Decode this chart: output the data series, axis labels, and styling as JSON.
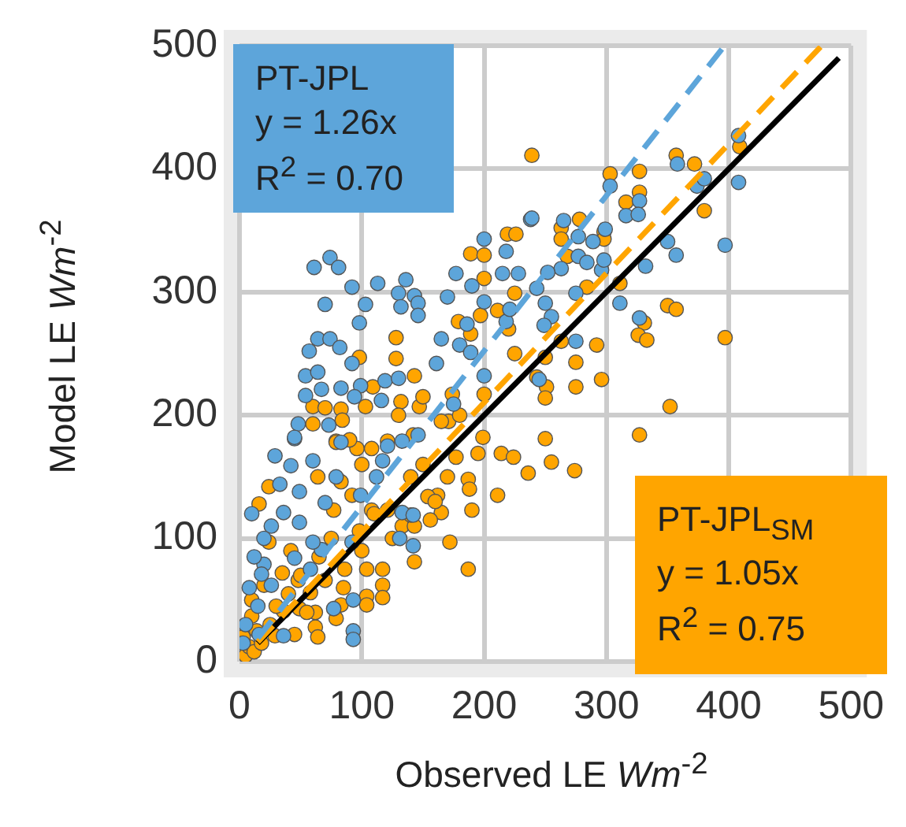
{
  "chart_data": {
    "type": "scatter",
    "xlabel": "Observed LE Wm$^{-2}$",
    "ylabel": "Model LE Wm$^{-2}$",
    "xlim": [
      0,
      500
    ],
    "ylim": [
      0,
      500
    ],
    "xticks": [
      0,
      100,
      200,
      300,
      400,
      500
    ],
    "yticks": [
      0,
      100,
      200,
      300,
      400,
      500
    ],
    "grid": true,
    "legend": false,
    "marker": "circle",
    "annotations": [
      "PT-JPL",
      "y = 1.26x",
      "R$^{2}$ = 0.70",
      "PT-JPL$_{SM}$",
      "y = 1.05x",
      "R$^{2}$ = 0.75"
    ],
    "series": [
      {
        "color": "#5da5da",
        "x": [
          61,
          74,
          81,
          92,
          113,
          136,
          130,
          143,
          146,
          132,
          146,
          70,
          103,
          98,
          64,
          74,
          82,
          57,
          92,
          54,
          64,
          67,
          54,
          83,
          99,
          119,
          130,
          94,
          116,
          48,
          73,
          45,
          165,
          170,
          177,
          190,
          200,
          218,
          238,
          215,
          228,
          218,
          221,
          180,
          189,
          200,
          186,
          200,
          161,
          175,
          358,
          408,
          408,
          374,
          380,
          327,
          316,
          326,
          303,
          265,
          239,
          289,
          277,
          299,
          263,
          252,
          277,
          284,
          296,
          298,
          332,
          350,
          357,
          397,
          243,
          250,
          255,
          275,
          311,
          327,
          275,
          249,
          245,
          45,
          29,
          42,
          60,
          83,
          117,
          121,
          133,
          146,
          33,
          49,
          70,
          49,
          26,
          36,
          133,
          131,
          142,
          142,
          92,
          20,
          26,
          18,
          93,
          93,
          93,
          77,
          58,
          45,
          67,
          112,
          99,
          79,
          60,
          36,
          16,
          5,
          8,
          12,
          3,
          15,
          20,
          10
        ],
        "values": [
          320,
          328,
          320,
          304,
          307,
          310,
          299,
          297,
          291,
          288,
          281,
          290,
          290,
          275,
          262,
          262,
          255,
          252,
          242,
          232,
          235,
          221,
          216,
          222,
          224,
          228,
          230,
          215,
          212,
          193,
          192,
          181,
          262,
          296,
          315,
          305,
          343,
          333,
          359,
          315,
          315,
          276,
          286,
          257,
          251,
          232,
          274,
          292,
          242,
          209,
          404,
          427,
          389,
          386,
          392,
          374,
          362,
          363,
          386,
          358,
          360,
          341,
          345,
          351,
          319,
          316,
          329,
          324,
          318,
          326,
          321,
          341,
          330,
          338,
          303,
          291,
          280,
          299,
          291,
          279,
          260,
          273,
          229,
          182,
          167,
          159,
          163,
          178,
          163,
          175,
          179,
          184,
          144,
          138,
          129,
          113,
          110,
          121,
          121,
          100,
          94,
          119,
          97,
          79,
          62,
          71,
          50,
          25,
          18,
          43,
          75,
          84,
          91,
          150,
          135,
          150,
          97,
          21,
          22,
          30,
          60,
          85,
          15,
          45,
          100,
          120
        ]
      },
      {
        "color": "#ffa500",
        "x": [
          128,
          128,
          98,
          109,
          143,
          189,
          200,
          219,
          226,
          200,
          179,
          189,
          197,
          211,
          220,
          225,
          225,
          60,
          70,
          83,
          103,
          132,
          60,
          84,
          147,
          174,
          171,
          200,
          199,
          142,
          79,
          121,
          239,
          357,
          372,
          327,
          303,
          327,
          316,
          380,
          278,
          263,
          263,
          298,
          298,
          268,
          311,
          284,
          350,
          357,
          331,
          326,
          333,
          397,
          292,
          263,
          250,
          275,
          296,
          275,
          243,
          251,
          250,
          352,
          250,
          327,
          409,
          255,
          274,
          236,
          177,
          195,
          214,
          224,
          187,
          188,
          211,
          190,
          162,
          154,
          165,
          156,
          172,
          187,
          143,
          133,
          143,
          117,
          117,
          104,
          104,
          104,
          83,
          79,
          62,
          64,
          36,
          24,
          16,
          24,
          64,
          79,
          96,
          108,
          83,
          92,
          77,
          108,
          98,
          117,
          42,
          35,
          20,
          48,
          58,
          70,
          86,
          10,
          10,
          14,
          29,
          45,
          49,
          62,
          140,
          121,
          5,
          8,
          3,
          12,
          18,
          25,
          30,
          40,
          50,
          55,
          65,
          75,
          85,
          100,
          110,
          125,
          140,
          150,
          160,
          170,
          180,
          165,
          150,
          130,
          90,
          100
        ],
        "values": [
          263,
          246,
          247,
          223,
          232,
          331,
          330,
          347,
          347,
          311,
          276,
          266,
          281,
          285,
          270,
          299,
          250,
          207,
          206,
          205,
          207,
          211,
          193,
          196,
          207,
          217,
          195,
          217,
          182,
          184,
          179,
          179,
          411,
          411,
          404,
          398,
          396,
          381,
          373,
          366,
          359,
          352,
          343,
          349,
          343,
          329,
          307,
          304,
          289,
          286,
          275,
          265,
          261,
          263,
          257,
          260,
          247,
          243,
          229,
          223,
          231,
          223,
          214,
          207,
          181,
          184,
          418,
          162,
          155,
          153,
          166,
          169,
          169,
          166,
          148,
          140,
          135,
          123,
          135,
          134,
          121,
          115,
          97,
          75,
          81,
          110,
          110,
          62,
          52,
          53,
          46,
          75,
          46,
          35,
          28,
          20,
          41,
          97,
          128,
          142,
          150,
          178,
          173,
          173,
          146,
          135,
          123,
          123,
          106,
          75,
          90,
          72,
          62,
          66,
          56,
          66,
          75,
          50,
          37,
          25,
          21,
          22,
          43,
          40,
          119,
          123,
          5,
          12,
          20,
          8,
          15,
          30,
          45,
          55,
          70,
          40,
          85,
          100,
          60,
          90,
          120,
          100,
          150,
          160,
          130,
          150,
          200,
          195,
          215,
          200,
          180,
          160
        ]
      },
      {
        "type": "line",
        "marker": "none",
        "color": "#5da5da",
        "line_style": "dashed",
        "x": [
          15,
          395
        ],
        "values": [
          19,
          498
        ]
      },
      {
        "type": "line",
        "marker": "none",
        "color": "#ffa500",
        "line_style": "dashed",
        "x": [
          15,
          475
        ],
        "values": [
          16,
          499
        ]
      },
      {
        "type": "line",
        "marker": "none",
        "color": "#000000",
        "line_style": "solid",
        "x": [
          15,
          490
        ],
        "values": [
          15,
          490
        ]
      }
    ]
  }
}
